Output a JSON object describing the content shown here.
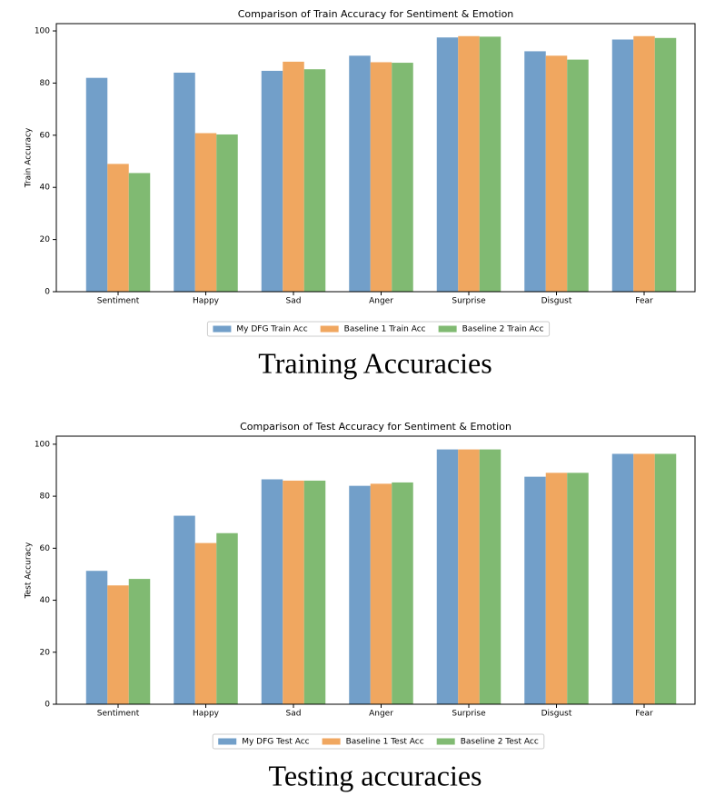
{
  "chart_data": [
    {
      "type": "bar",
      "title": "Comparison of Train Accuracy for Sentiment & Emotion",
      "y_label": "Train Accuracy",
      "caption": "Training Accuracies",
      "categories": [
        "Sentiment",
        "Happy",
        "Sad",
        "Anger",
        "Surprise",
        "Disgust",
        "Fear"
      ],
      "series": [
        {
          "name": "My DFG Train Acc",
          "color": "#729fc9",
          "values": [
            82,
            84,
            84.7,
            90.5,
            97.5,
            92.2,
            96.7
          ]
        },
        {
          "name": "Baseline 1 Train Acc",
          "color": "#f0a760",
          "values": [
            49,
            60.8,
            88.2,
            88,
            98,
            90.5,
            98
          ]
        },
        {
          "name": "Baseline 2 Train Acc",
          "color": "#80ba72",
          "values": [
            45.5,
            60.3,
            85.3,
            87.8,
            97.8,
            89,
            97.3
          ]
        }
      ],
      "ylim": [
        0,
        102.8
      ],
      "yticks": [
        0,
        20,
        40,
        60,
        80,
        100
      ],
      "legend": "bottom"
    },
    {
      "type": "bar",
      "title": "Comparison of Test Accuracy for Sentiment & Emotion",
      "y_label": "Test Accuracy",
      "caption": "Testing accuracies",
      "categories": [
        "Sentiment",
        "Happy",
        "Sad",
        "Anger",
        "Surprise",
        "Disgust",
        "Fear"
      ],
      "series": [
        {
          "name": "My DFG Test Acc",
          "color": "#729fc9",
          "values": [
            51.3,
            72.5,
            86.5,
            84,
            98,
            87.5,
            96.3
          ]
        },
        {
          "name": "Baseline 1 Test Acc",
          "color": "#f0a760",
          "values": [
            45.7,
            62,
            86,
            84.8,
            98,
            89,
            96.3
          ]
        },
        {
          "name": "Baseline 2 Test Acc",
          "color": "#80ba72",
          "values": [
            48.2,
            65.8,
            86,
            85.3,
            98,
            89,
            96.3
          ]
        }
      ],
      "ylim": [
        0,
        103.1
      ],
      "yticks": [
        0,
        20,
        40,
        60,
        80,
        100
      ],
      "legend": "bottom"
    }
  ]
}
